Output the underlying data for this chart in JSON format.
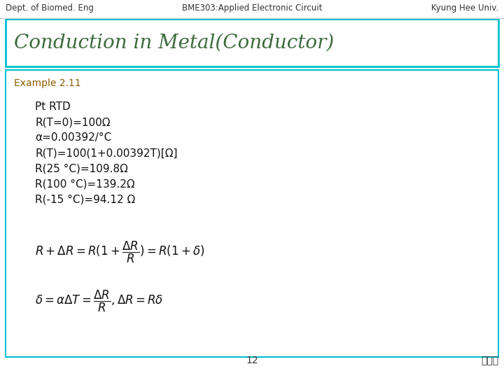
{
  "header_left": "Dept. of Biomed. Eng",
  "header_center": "BME303:Applied Electronic Circuit",
  "header_right": "Kyung Hee Univ.",
  "title": "Conduction in Metal(Conductor)",
  "title_color": "#3d6b3d",
  "title_border_color": "#00c0d0",
  "example_label": "Example 2.11",
  "example_color": "#8b5e00",
  "content_lines": [
    "Pt RTD",
    "R(T=0)=100Ω",
    "α=0.00392/°C",
    "R(T)=100(1+0.00392T)[Ω]",
    "R(25 °C)=109.8Ω",
    "R(100 °C)=139.2Ω",
    "R(-15 °C)=94.12 Ω"
  ],
  "formula1": "$R + \\Delta R = R(1 + \\dfrac{\\Delta R}{R}) = R(1 + \\delta)$",
  "formula2": "$\\delta = \\alpha \\Delta T = \\dfrac{\\Delta R}{R}, \\Delta R = R\\delta$",
  "footer_center": "12",
  "footer_right": "이규락",
  "bg_color": "#ffffff",
  "header_color": "#333333",
  "content_border_color": "#00c0d0",
  "content_bg_color": "#ffffff",
  "header_fontsize": 8.5,
  "title_fontsize": 20,
  "example_fontsize": 10,
  "content_fontsize": 11,
  "formula_fontsize": 12,
  "footer_fontsize": 10
}
